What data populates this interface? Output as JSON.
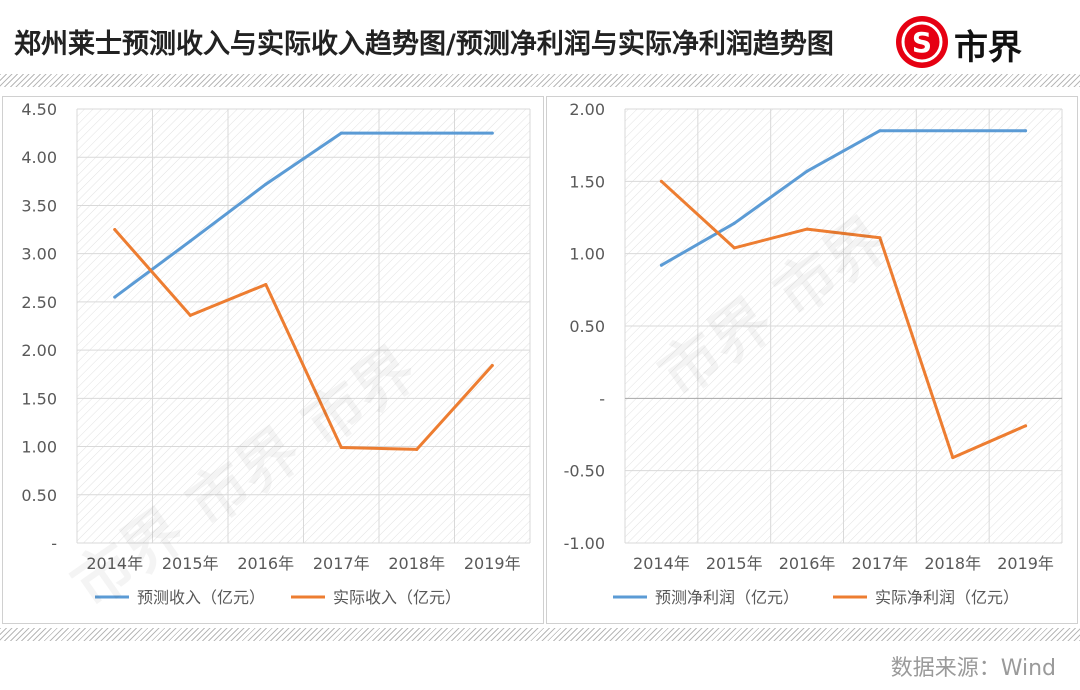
{
  "header": {
    "title": "郑州莱士预测收入与实际收入趋势图/预测净利润与实际净利润趋势图",
    "logo_text": "市界",
    "logo_glyph": "S"
  },
  "footer": {
    "source": "数据来源：Wind"
  },
  "colors": {
    "forecast": "#5b9bd5",
    "actual": "#ed7d31",
    "brand_red": "#e60012"
  },
  "chart_data": [
    {
      "type": "line",
      "categories": [
        "2014年",
        "2015年",
        "2016年",
        "2017年",
        "2018年",
        "2019年"
      ],
      "ylim": [
        0,
        4.5
      ],
      "yticks": [
        0,
        0.5,
        1.0,
        1.5,
        2.0,
        2.5,
        3.0,
        3.5,
        4.0,
        4.5
      ],
      "ytick_labels": [
        "-",
        "0.50",
        "1.00",
        "1.50",
        "2.00",
        "2.50",
        "3.00",
        "3.50",
        "4.00",
        "4.50"
      ],
      "series": [
        {
          "name": "预测收入（亿元）",
          "values": [
            2.55,
            3.13,
            3.72,
            4.25,
            4.25,
            4.25
          ],
          "color": "#5b9bd5"
        },
        {
          "name": "实际收入（亿元）",
          "values": [
            3.25,
            2.36,
            2.68,
            0.99,
            0.97,
            1.84
          ],
          "color": "#ed7d31"
        }
      ],
      "grid": true,
      "legend": "bottom"
    },
    {
      "type": "line",
      "categories": [
        "2014年",
        "2015年",
        "2016年",
        "2017年",
        "2018年",
        "2019年"
      ],
      "ylim": [
        -1.0,
        2.0
      ],
      "yticks": [
        -1.0,
        -0.5,
        0,
        0.5,
        1.0,
        1.5,
        2.0
      ],
      "ytick_labels": [
        "-1.00",
        "-0.50",
        "-",
        "0.50",
        "1.00",
        "1.50",
        "2.00"
      ],
      "series": [
        {
          "name": "预测净利润（亿元）",
          "values": [
            0.92,
            1.21,
            1.57,
            1.85,
            1.85,
            1.85
          ],
          "color": "#5b9bd5"
        },
        {
          "name": "实际净利润（亿元）",
          "values": [
            1.5,
            1.04,
            1.17,
            1.11,
            -0.41,
            -0.19
          ],
          "color": "#ed7d31"
        }
      ],
      "grid": true,
      "legend": "bottom"
    }
  ]
}
